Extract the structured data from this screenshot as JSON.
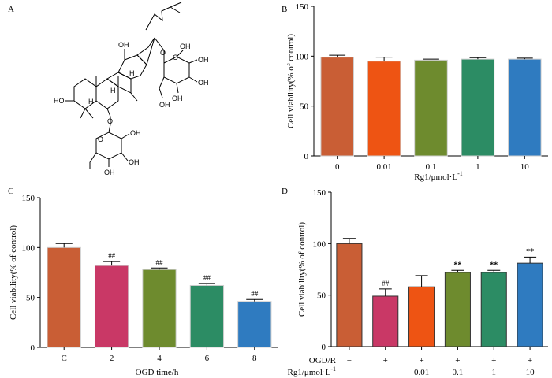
{
  "figure": {
    "panels": {
      "A": {
        "letter": "A",
        "description_labels": {
          "oh_top": "OH",
          "oh_left": "HO",
          "h1": "H",
          "h2": "H",
          "h3": "H",
          "o_link1": "O",
          "o_link2": "O",
          "o_ring1": "O",
          "o_ring2": "O",
          "oh_s1": "OH",
          "oh_s2": "OH",
          "oh_s3": "OH",
          "oh_s4": "OH",
          "oh_s5": "OH",
          "oh_s6": "OH",
          "oh_s7": "OH",
          "oh_s8": "OH"
        }
      }
    }
  },
  "colors": {
    "orange_brown": "#C95E35",
    "orange": "#EE5413",
    "olive": "#6E8B2E",
    "green": "#2C8C64",
    "blue": "#2F7BC0",
    "magenta": "#C93866"
  },
  "chart_data": [
    {
      "id": "B",
      "panel_letter": "B",
      "type": "bar",
      "categories": [
        "0",
        "0.01",
        "0.1",
        "1",
        "10"
      ],
      "values": [
        99,
        95,
        96,
        97,
        97
      ],
      "errors": [
        2,
        4,
        1,
        1.5,
        1
      ],
      "colors": [
        "#C95E35",
        "#EE5413",
        "#6E8B2E",
        "#2C8C64",
        "#2F7BC0"
      ],
      "bar_outline": "light",
      "ylim": [
        0,
        150
      ],
      "yticks": [
        "0",
        "50",
        "100",
        "150"
      ],
      "ylabel": "Cell viability(% of control)",
      "xlabel": "Rg1/μmol·L",
      "xlabel_sup": "-1",
      "annotations": [
        "",
        "",
        "",
        "",
        ""
      ],
      "annotation_style": "",
      "rows": []
    },
    {
      "id": "C",
      "panel_letter": "C",
      "type": "bar",
      "categories": [
        "C",
        "2",
        "4",
        "6",
        "8"
      ],
      "values": [
        100,
        82,
        78,
        62,
        46
      ],
      "errors": [
        4,
        4,
        1.5,
        2,
        2
      ],
      "colors": [
        "#C95E35",
        "#C93866",
        "#6E8B2E",
        "#2C8C64",
        "#2F7BC0"
      ],
      "bar_outline": "light",
      "ylim": [
        0,
        150
      ],
      "yticks": [
        "0",
        "50",
        "100",
        "150"
      ],
      "ylabel": "Cell viability(% of control)",
      "xlabel": "OGD time/h",
      "xlabel_sup": "",
      "annotations": [
        "",
        "##",
        "##",
        "##",
        "##"
      ],
      "annotation_style": "hash",
      "rows": []
    },
    {
      "id": "D",
      "panel_letter": "D",
      "type": "bar",
      "categories": [
        "",
        "",
        "",
        "",
        "",
        ""
      ],
      "values": [
        100,
        49,
        58,
        72,
        72,
        81
      ],
      "errors": [
        5,
        7,
        11,
        2,
        2,
        6
      ],
      "colors": [
        "#C95E35",
        "#C93866",
        "#EE5413",
        "#6E8B2E",
        "#2C8C64",
        "#2F7BC0"
      ],
      "bar_outline": "dark",
      "ylim": [
        0,
        150
      ],
      "yticks": [
        "0",
        "50",
        "100",
        "150"
      ],
      "ylabel": "Cell viability(% of control)",
      "xlabel": "",
      "xlabel_sup": "",
      "annotations": [
        "",
        "##",
        "",
        "**",
        "**",
        "**"
      ],
      "annotation_style": "star",
      "rows": [
        {
          "label": "OGD/R",
          "label_sup": "",
          "values": [
            "−",
            "+",
            "+",
            "+",
            "+",
            "+"
          ]
        },
        {
          "label": "Rg1/μmol·L",
          "label_sup": "-1",
          "values": [
            "−",
            "−",
            "0.01",
            "0.1",
            "1",
            "10"
          ]
        }
      ]
    }
  ]
}
